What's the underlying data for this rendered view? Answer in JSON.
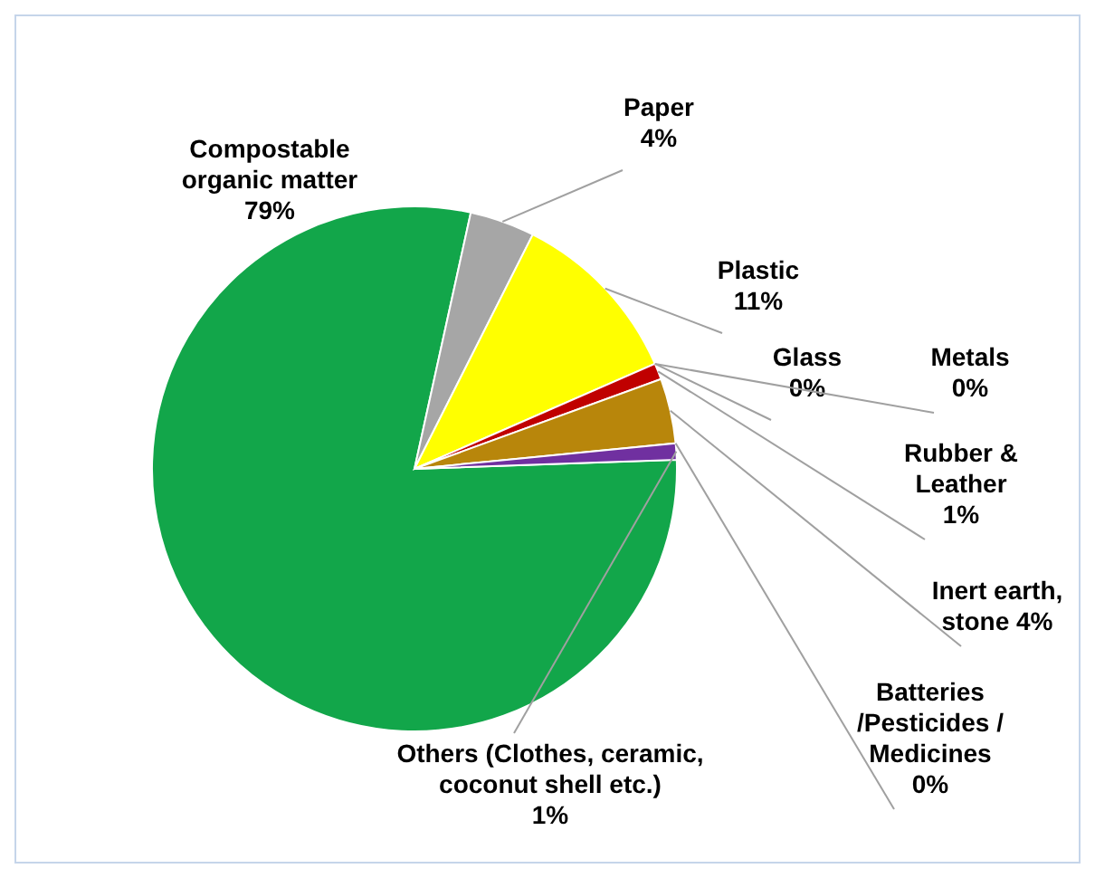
{
  "chart_data": {
    "type": "pie",
    "categories": [
      "Compostable organic matter",
      "Paper",
      "Plastic",
      "Glass",
      "Metals",
      "Rubber & Leather",
      "Inert earth, stone",
      "Batteries /Pesticides / Medicines",
      "Others (Clothes, ceramic, coconut shell etc.)"
    ],
    "values": [
      79,
      4,
      11,
      0,
      0,
      1,
      4,
      0,
      1
    ],
    "colors": [
      "#12a64a",
      "#a6a6a6",
      "#ffff00",
      "#ff6600",
      "#c0504d",
      "#c00000",
      "#b8860b",
      "#ff00ff",
      "#7030a0"
    ],
    "value_labels": [
      "79%",
      "4%",
      "11%",
      "0%",
      "0%",
      "1%",
      "4%",
      "0%",
      "1%"
    ],
    "legend": false
  }
}
